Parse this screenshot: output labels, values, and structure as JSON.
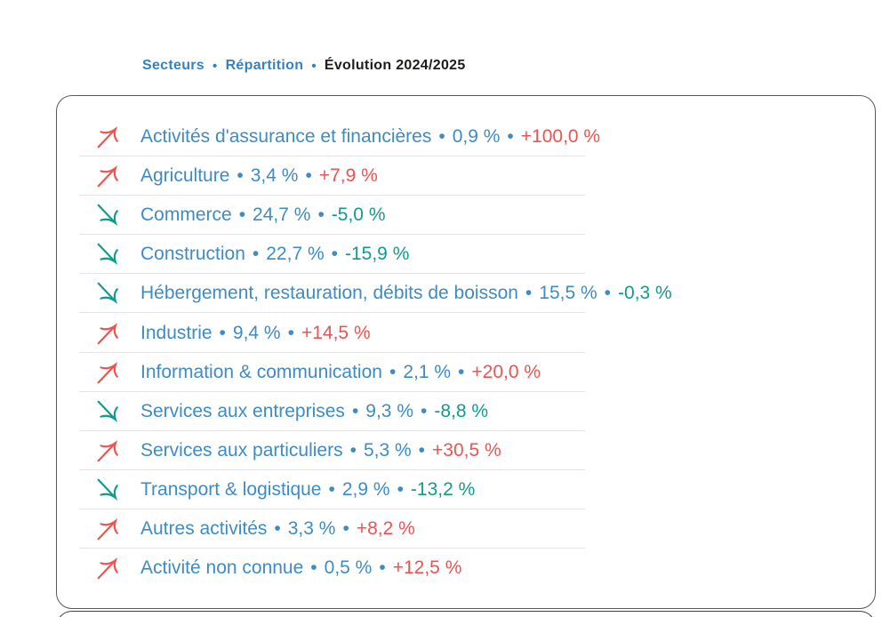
{
  "colors": {
    "accent_blue": "#3d8cc4",
    "tab_blue": "#3583bd",
    "tab_active": "#1d1d1b",
    "up_red": "#ea5451",
    "down_teal": "#119b8f",
    "divider": "#e4e4e4",
    "card_border": "#595959"
  },
  "tabs": {
    "separator": "•",
    "items": [
      {
        "label": "Secteurs",
        "active": false
      },
      {
        "label": "Répartition",
        "active": false
      },
      {
        "label": "Évolution 2024/2025",
        "active": true
      }
    ]
  },
  "list": {
    "separator": "•",
    "sectors": [
      {
        "name": "Activités d'assurance et financières",
        "share": "0,9 %",
        "evolution": "+100,0 %",
        "direction": "up"
      },
      {
        "name": "Agriculture",
        "share": "3,4 %",
        "evolution": "+7,9 %",
        "direction": "up"
      },
      {
        "name": "Commerce",
        "share": "24,7 %",
        "evolution": "-5,0 %",
        "direction": "down"
      },
      {
        "name": "Construction",
        "share": "22,7 %",
        "evolution": "-15,9 %",
        "direction": "down"
      },
      {
        "name": "Hébergement, restauration, débits de boisson",
        "share": "15,5 %",
        "evolution": "-0,3 %",
        "direction": "down"
      },
      {
        "name": "Industrie",
        "share": "9,4 %",
        "evolution": "+14,5 %",
        "direction": "up"
      },
      {
        "name": "Information & communication",
        "share": "2,1 %",
        "evolution": "+20,0 %",
        "direction": "up"
      },
      {
        "name": "Services aux entreprises",
        "share": "9,3 %",
        "evolution": "-8,8 %",
        "direction": "down"
      },
      {
        "name": "Services aux particuliers",
        "share": "5,3 %",
        "evolution": "+30,5 %",
        "direction": "up"
      },
      {
        "name": "Transport & logistique",
        "share": "2,9 %",
        "evolution": "-13,2 %",
        "direction": "down"
      },
      {
        "name": "Autres activités",
        "share": "3,3 %",
        "evolution": "+8,2 %",
        "direction": "up"
      },
      {
        "name": "Activité non connue",
        "share": "0,5 %",
        "evolution": "+12,5 %",
        "direction": "up"
      }
    ]
  }
}
